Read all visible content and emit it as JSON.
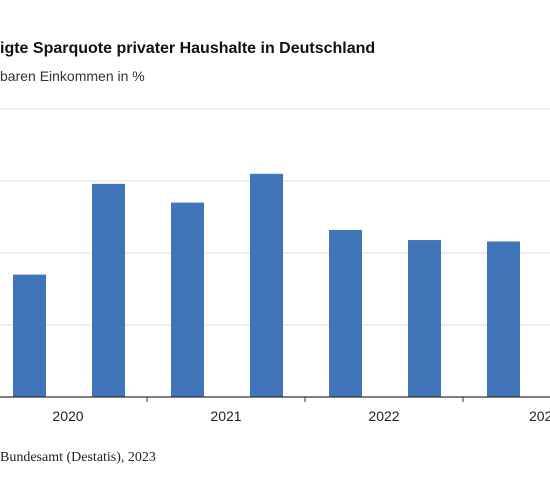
{
  "chart_data": {
    "type": "bar",
    "title": "igte Sparquote privater Haushalte in Deutschland",
    "subtitle": "baren Einkommen in %",
    "series": [
      {
        "name": "",
        "color": "#4175b9",
        "values": [
          8.5,
          14.8,
          13.5,
          15.5,
          11.6,
          10.9,
          10.8
        ]
      }
    ],
    "x_ticks": [
      "2020",
      "2021",
      "2022",
      "202"
    ],
    "ylim": [
      0,
      20
    ],
    "grid": true,
    "source": "Bundesamt (Destatis), 2023"
  }
}
